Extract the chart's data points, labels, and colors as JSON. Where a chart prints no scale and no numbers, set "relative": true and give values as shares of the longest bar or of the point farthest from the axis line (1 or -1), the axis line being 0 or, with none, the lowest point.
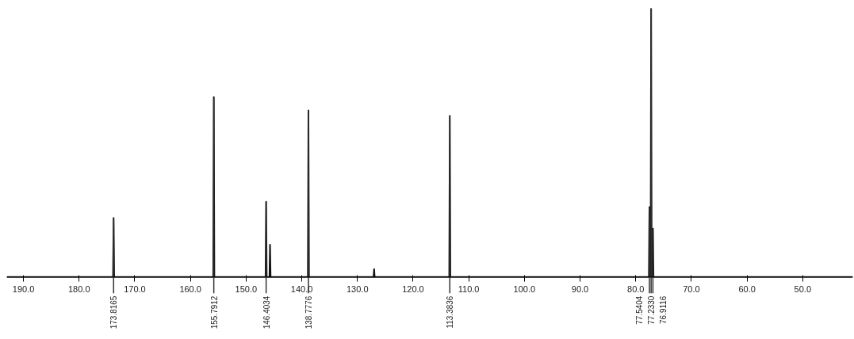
{
  "chart_data": {
    "type": "line",
    "relative": true,
    "grid": false,
    "marker": "none",
    "line_style": "solid",
    "tick_labels": "x",
    "xlim": [
      193,
      41
    ],
    "xticks": [
      {
        "value": 190,
        "label": "190.0"
      },
      {
        "value": 180,
        "label": "180.0"
      },
      {
        "value": 170,
        "label": "170.0"
      },
      {
        "value": 160,
        "label": "160.0"
      },
      {
        "value": 150,
        "label": "150.0"
      },
      {
        "value": 140,
        "label": "140.0"
      },
      {
        "value": 130,
        "label": "130.0"
      },
      {
        "value": 120,
        "label": "120.0"
      },
      {
        "value": 110,
        "label": "110.0"
      },
      {
        "value": 100,
        "label": "100.0"
      },
      {
        "value": 90,
        "label": "90.0"
      },
      {
        "value": 80,
        "label": "80.0"
      },
      {
        "value": 70,
        "label": "70.0"
      },
      {
        "value": 60,
        "label": "60.0"
      },
      {
        "value": 50,
        "label": "50.0"
      }
    ],
    "series": [
      {
        "color": "#111111",
        "x": [
          193,
          173.9,
          173.8,
          173.7,
          155.9,
          155.8,
          155.7,
          146.5,
          146.4,
          146.3,
          145.8,
          145.7,
          145.6,
          138.9,
          138.8,
          138.7,
          127.1,
          127.0,
          126.9,
          113.5,
          113.4,
          113.3,
          77.64,
          77.54,
          77.44,
          77.33,
          77.23,
          77.13,
          77.01,
          76.91,
          76.81,
          41
        ],
        "values": [
          0,
          0,
          0.22,
          0,
          0,
          0.67,
          0,
          0,
          0.28,
          0,
          0,
          0.12,
          0,
          0,
          0.62,
          0,
          0,
          0.03,
          0,
          0,
          0.6,
          0,
          0,
          0.26,
          0,
          0,
          1,
          0,
          0,
          0.18,
          0,
          0
        ]
      }
    ],
    "annotations": [
      {
        "text": "173.8165",
        "x": 173.8,
        "y": 0.22
      },
      {
        "text": "155.7912",
        "x": 155.8,
        "y": 0.67
      },
      {
        "text": "146.4034",
        "x": 146.4,
        "y": 0.28
      },
      {
        "text": "138.7776",
        "x": 138.8,
        "y": 0.62
      },
      {
        "text": "113.3836",
        "x": 113.4,
        "y": 0.6
      },
      {
        "text": "77.5404",
        "x": 77.54,
        "y": 0.26
      },
      {
        "text": "77.2330",
        "x": 77.23,
        "y": 1
      },
      {
        "text": "76.9116",
        "x": 76.91,
        "y": 0.18
      }
    ]
  }
}
